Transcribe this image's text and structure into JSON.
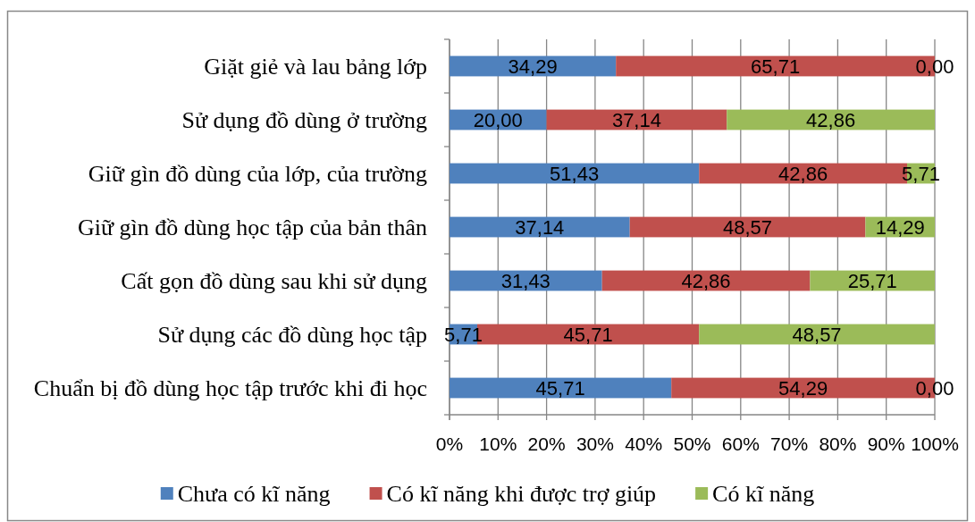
{
  "chart_data": {
    "type": "bar",
    "orientation": "horizontal",
    "stacked": true,
    "categories": [
      "Giặt giẻ và lau bảng lớp",
      "Sử dụng đồ dùng ở trường",
      "Giữ gìn đồ dùng của lớp, của trường",
      "Giữ gìn đồ dùng học tập của bản thân",
      "Cất gọn đồ dùng sau khi sử dụng",
      "Sử dụng các đồ dùng học tập",
      "Chuẩn bị đồ dùng học tập trước khi đi học"
    ],
    "series": [
      {
        "name": "Chưa có kĩ năng",
        "color": "#4f81bd",
        "values": [
          34.29,
          20.0,
          51.43,
          37.14,
          31.43,
          5.71,
          45.71
        ],
        "value_labels": [
          "34,29",
          "20,00",
          "51,43",
          "37,14",
          "31,43",
          "5,71",
          "45,71"
        ]
      },
      {
        "name": "Có kĩ năng khi được trợ giúp",
        "color": "#c0504d",
        "values": [
          65.71,
          37.14,
          42.86,
          48.57,
          42.86,
          45.71,
          54.29
        ],
        "value_labels": [
          "65,71",
          "37,14",
          "42,86",
          "48,57",
          "42,86",
          "45,71",
          "54,29"
        ]
      },
      {
        "name": "Có kĩ năng",
        "color": "#9bbb59",
        "values": [
          0.0,
          42.86,
          5.71,
          14.29,
          25.71,
          48.57,
          0.0
        ],
        "value_labels": [
          "0,00",
          "42,86",
          "5,71",
          "14,29",
          "25,71",
          "48,57",
          "0,00"
        ]
      }
    ],
    "xlim": [
      0,
      100
    ],
    "xticks": [
      {
        "value": 0,
        "label": "0%"
      },
      {
        "value": 10,
        "label": "10%"
      },
      {
        "value": 20,
        "label": "20%"
      },
      {
        "value": 30,
        "label": "30%"
      },
      {
        "value": 40,
        "label": "40%"
      },
      {
        "value": 50,
        "label": "50%"
      },
      {
        "value": 60,
        "label": "60%"
      },
      {
        "value": 70,
        "label": "70%"
      },
      {
        "value": 80,
        "label": "80%"
      },
      {
        "value": 90,
        "label": "90%"
      },
      {
        "value": 100,
        "label": "100%"
      }
    ],
    "grid": "x",
    "legend": "bottom"
  }
}
